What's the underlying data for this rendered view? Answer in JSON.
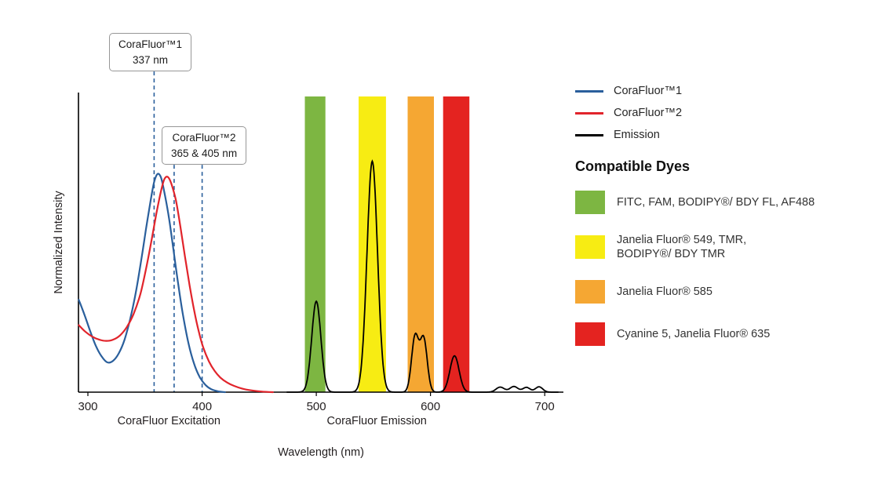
{
  "callouts": {
    "corafluor1": {
      "title": "CoraFluor™1",
      "value": "337 nm"
    },
    "corafluor2": {
      "title": "CoraFluor™2",
      "value": "365 & 405 nm"
    }
  },
  "legend": {
    "items": [
      {
        "label": "CoraFluor™1",
        "color": "#2a5f9c"
      },
      {
        "label": "CoraFluor™2",
        "color": "#e1242b"
      },
      {
        "label": "Emission",
        "color": "#000000"
      }
    ]
  },
  "compatible_dyes": {
    "title": "Compatible Dyes",
    "items": [
      {
        "color": "#7db642",
        "label": "FITC, FAM, BODIPY®/ BDY FL, AF488"
      },
      {
        "color": "#f7ec13",
        "label": "Janelia Fluor® 549, TMR,\nBODIPY®/ BDY TMR"
      },
      {
        "color": "#f5a733",
        "label": "Janelia Fluor® 585"
      },
      {
        "color": "#e42320",
        "label": "Cyanine 5, Janelia Fluor® 635"
      }
    ]
  },
  "chart_data": {
    "type": "line",
    "title": "",
    "xlabel": "Wavelength (nm)",
    "ylabel": "Normalized Intensity",
    "xlim": [
      292,
      716
    ],
    "ylim": [
      0,
      1.0
    ],
    "x_ticks": [
      300,
      400,
      500,
      600,
      700
    ],
    "grid": false,
    "legend_position": "right",
    "x_axis_sublabels": [
      {
        "text": "CoraFluor Excitation",
        "x": 371
      },
      {
        "text": "CoraFluor Emission",
        "x": 553
      }
    ],
    "bands": [
      {
        "name": "green",
        "color": "#7db642",
        "x1": 490,
        "x2": 508
      },
      {
        "name": "yellow",
        "color": "#f7ec13",
        "x1": 537,
        "x2": 561
      },
      {
        "name": "orange",
        "color": "#f5a733",
        "x1": 580,
        "x2": 603
      },
      {
        "name": "red",
        "color": "#e42320",
        "x1": 611,
        "x2": 634
      }
    ],
    "annotation_lines": [
      {
        "x": 358,
        "callout": "callout-corafluor1",
        "color": "#2a5f9c"
      },
      {
        "x": 375.5,
        "callout": "callout-corafluor2",
        "color": "#2a5f9c"
      },
      {
        "x": 400,
        "callout": "callout-corafluor2",
        "color": "#2a5f9c"
      }
    ],
    "series": [
      {
        "id": "corafluor1",
        "name": "CoraFluor™1 excitation",
        "color": "#2a5f9c",
        "points": [
          [
            292,
            0.31
          ],
          [
            297,
            0.26
          ],
          [
            302,
            0.205
          ],
          [
            307,
            0.155
          ],
          [
            312,
            0.12
          ],
          [
            317,
            0.1
          ],
          [
            322,
            0.105
          ],
          [
            327,
            0.13
          ],
          [
            332,
            0.175
          ],
          [
            337,
            0.245
          ],
          [
            342,
            0.335
          ],
          [
            347,
            0.45
          ],
          [
            351,
            0.55
          ],
          [
            355,
            0.645
          ],
          [
            358,
            0.705
          ],
          [
            361,
            0.732
          ],
          [
            364,
            0.72
          ],
          [
            367,
            0.67
          ],
          [
            371,
            0.585
          ],
          [
            375,
            0.475
          ],
          [
            379,
            0.365
          ],
          [
            383,
            0.265
          ],
          [
            388,
            0.165
          ],
          [
            393,
            0.095
          ],
          [
            398,
            0.05
          ],
          [
            403,
            0.024
          ],
          [
            408,
            0.01
          ],
          [
            414,
            0.003
          ],
          [
            420,
            0
          ]
        ]
      },
      {
        "id": "corafluor2",
        "name": "CoraFluor™2 excitation",
        "color": "#e1242b",
        "points": [
          [
            292,
            0.225
          ],
          [
            298,
            0.202
          ],
          [
            304,
            0.186
          ],
          [
            310,
            0.176
          ],
          [
            316,
            0.172
          ],
          [
            322,
            0.176
          ],
          [
            328,
            0.19
          ],
          [
            334,
            0.218
          ],
          [
            340,
            0.262
          ],
          [
            346,
            0.33
          ],
          [
            351,
            0.415
          ],
          [
            356,
            0.515
          ],
          [
            360,
            0.6
          ],
          [
            364,
            0.675
          ],
          [
            367,
            0.715
          ],
          [
            370,
            0.722
          ],
          [
            373,
            0.7
          ],
          [
            377,
            0.645
          ],
          [
            381,
            0.555
          ],
          [
            385,
            0.455
          ],
          [
            389,
            0.36
          ],
          [
            393,
            0.275
          ],
          [
            397,
            0.205
          ],
          [
            401,
            0.15
          ],
          [
            406,
            0.103
          ],
          [
            411,
            0.071
          ],
          [
            416,
            0.049
          ],
          [
            422,
            0.032
          ],
          [
            428,
            0.021
          ],
          [
            435,
            0.012
          ],
          [
            443,
            0.006
          ],
          [
            452,
            0.002
          ],
          [
            462,
            0
          ]
        ]
      },
      {
        "id": "emission",
        "name": "Emission",
        "color": "#000000",
        "range": [
          474,
          712
        ],
        "peaks": [
          {
            "center": 500,
            "height": 0.305,
            "width": 4.0
          },
          {
            "center": 549,
            "height": 0.775,
            "width": 4.6
          },
          {
            "center": 586.5,
            "height": 0.186,
            "width": 3.1
          },
          {
            "center": 594,
            "height": 0.178,
            "width": 3.1
          },
          {
            "center": 621,
            "height": 0.122,
            "width": 4.0
          },
          {
            "center": 661,
            "height": 0.017,
            "width": 3.6
          },
          {
            "center": 673,
            "height": 0.019,
            "width": 3.6
          },
          {
            "center": 684,
            "height": 0.016,
            "width": 3.2
          },
          {
            "center": 695,
            "height": 0.018,
            "width": 3.2
          }
        ]
      }
    ]
  }
}
